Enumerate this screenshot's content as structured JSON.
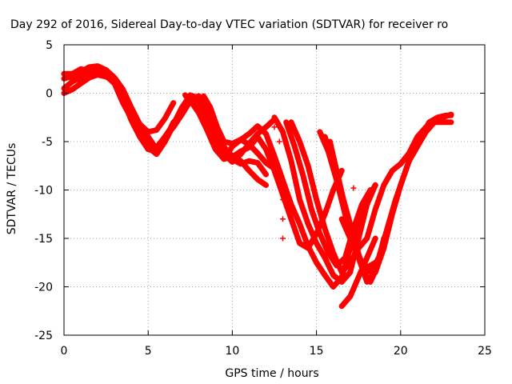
{
  "chart_data": {
    "type": "scatter",
    "title": "Day 292 of 2016, Sidereal Day-to-day VTEC variation (SDTVAR) for receiver ro",
    "xlabel": "GPS time / hours",
    "ylabel": "SDTVAR / TECUs",
    "xlim": [
      0,
      25
    ],
    "ylim": [
      -25,
      5
    ],
    "x_ticks": [
      0,
      5,
      10,
      15,
      20,
      25
    ],
    "y_ticks": [
      5,
      0,
      -5,
      -10,
      -15,
      -20,
      -25
    ],
    "x_tick_labels": [
      "0",
      "5",
      "10",
      "15",
      "20",
      "25"
    ],
    "y_tick_labels": [
      "5",
      "0",
      "-5",
      "-10",
      "-15",
      "-20",
      "-25"
    ],
    "grid": true,
    "marker": "+",
    "color": "#ff0000",
    "series": [
      {
        "points": [
          [
            0,
            2
          ],
          [
            0.5,
            2
          ],
          [
            1,
            2.5
          ],
          [
            1.5,
            2.3
          ],
          [
            2,
            2.6
          ],
          [
            2.5,
            2.2
          ],
          [
            3,
            1.3
          ],
          [
            3.5,
            -0.5
          ],
          [
            4,
            -2
          ],
          [
            4.5,
            -3.2
          ],
          [
            5,
            -4
          ],
          [
            5.5,
            -3.8
          ],
          [
            6,
            -2.6
          ],
          [
            6.5,
            -1
          ]
        ]
      },
      {
        "points": [
          [
            0,
            1.5
          ],
          [
            0.5,
            1.8
          ],
          [
            1,
            2.2
          ],
          [
            1.5,
            2.7
          ],
          [
            2,
            2.8
          ],
          [
            2.5,
            2.4
          ],
          [
            3,
            1.2
          ],
          [
            3.5,
            -0.6
          ],
          [
            4,
            -2.8
          ],
          [
            4.5,
            -4.5
          ],
          [
            5,
            -5.8
          ],
          [
            5.5,
            -6
          ],
          [
            6,
            -4.5
          ],
          [
            6.5,
            -3.2
          ],
          [
            7,
            -1.5
          ],
          [
            7.5,
            -0.5
          ],
          [
            8,
            -1
          ],
          [
            8.5,
            -2.5
          ],
          [
            9,
            -4.8
          ],
          [
            9.5,
            -6.3
          ],
          [
            10,
            -7.1
          ],
          [
            10.5,
            -6.3
          ],
          [
            11,
            -5.2
          ],
          [
            11.5,
            -4.2
          ],
          [
            12,
            -3.5
          ],
          [
            12.5,
            -2.7
          ]
        ]
      },
      {
        "points": [
          [
            0,
            0.5
          ],
          [
            0.5,
            1.2
          ],
          [
            1,
            1.6
          ],
          [
            1.5,
            2
          ],
          [
            2,
            2.1
          ],
          [
            2.5,
            1.8
          ],
          [
            3,
            1
          ],
          [
            3.5,
            -1
          ],
          [
            4,
            -2.6
          ],
          [
            4.5,
            -4
          ],
          [
            5,
            -5.6
          ],
          [
            5.5,
            -6.3
          ],
          [
            6,
            -5
          ],
          [
            6.5,
            -3.3
          ],
          [
            7,
            -1.5
          ],
          [
            7.5,
            -0.2
          ],
          [
            8,
            -0.5
          ],
          [
            8.5,
            -3
          ],
          [
            9,
            -5.2
          ],
          [
            9.5,
            -6.8
          ],
          [
            10,
            -5.5
          ],
          [
            10.5,
            -4.8
          ],
          [
            11,
            -5.3
          ],
          [
            11.5,
            -6.2
          ],
          [
            12,
            -7.2
          ],
          [
            12.5,
            -7.8
          ]
        ]
      },
      {
        "points": [
          [
            0,
            0
          ],
          [
            0.5,
            0.4
          ],
          [
            1,
            1
          ],
          [
            1.5,
            1.6
          ],
          [
            2,
            1.9
          ],
          [
            2.5,
            1.7
          ],
          [
            3,
            1.2
          ],
          [
            3.5,
            -0.2
          ],
          [
            4,
            -1.8
          ],
          [
            4.5,
            -3.5
          ],
          [
            5,
            -5
          ],
          [
            5.5,
            -5.6
          ],
          [
            6,
            -4.5
          ],
          [
            6.5,
            -3.5
          ],
          [
            7,
            -2.2
          ],
          [
            7.5,
            -0.8
          ],
          [
            8,
            -0.5
          ],
          [
            8.5,
            -1.5
          ],
          [
            9,
            -3.5
          ],
          [
            9.5,
            -5.5
          ],
          [
            10,
            -6.8
          ],
          [
            10.5,
            -7.3
          ],
          [
            11,
            -7
          ],
          [
            11.5,
            -7.2
          ],
          [
            12,
            -8.4
          ]
        ]
      },
      {
        "points": [
          [
            0,
            2
          ],
          [
            0.5,
            1.5
          ],
          [
            1,
            1.4
          ],
          [
            1.5,
            1.8
          ],
          [
            2,
            2.2
          ],
          [
            2.5,
            2.4
          ],
          [
            3,
            1.6
          ],
          [
            3.5,
            0.4
          ],
          [
            4,
            -1.5
          ],
          [
            4.5,
            -3.2
          ],
          [
            5,
            -4.5
          ],
          [
            5.5,
            -5.8
          ],
          [
            6,
            -4.8
          ],
          [
            6.5,
            -3
          ],
          [
            7,
            -2.2
          ],
          [
            7.5,
            -0.6
          ],
          [
            8,
            -0.3
          ],
          [
            8.5,
            -1.8
          ],
          [
            9,
            -3.8
          ],
          [
            9.5,
            -5.6
          ],
          [
            10,
            -6.5
          ],
          [
            10.5,
            -7
          ],
          [
            11,
            -8
          ],
          [
            11.5,
            -8.9
          ],
          [
            12,
            -9.5
          ]
        ]
      },
      {
        "points": [
          [
            7.2,
            -0.2
          ],
          [
            7.6,
            -1
          ],
          [
            8,
            -2
          ],
          [
            8.5,
            -3.8
          ],
          [
            9,
            -5.8
          ],
          [
            9.5,
            -6.8
          ],
          [
            10,
            -6.6
          ],
          [
            10.5,
            -6
          ],
          [
            11,
            -5.6
          ],
          [
            11.5,
            -4.5
          ],
          [
            12,
            -5.8
          ],
          [
            12.5,
            -8
          ],
          [
            13,
            -10.5
          ],
          [
            13.5,
            -13
          ],
          [
            14,
            -15.5
          ],
          [
            14.5,
            -16
          ],
          [
            15,
            -14.5
          ],
          [
            15.5,
            -12.5
          ],
          [
            16,
            -10
          ],
          [
            16.5,
            -8
          ]
        ]
      },
      {
        "points": [
          [
            8.3,
            -0.3
          ],
          [
            8.7,
            -1.5
          ],
          [
            9.1,
            -3.5
          ],
          [
            9.5,
            -5
          ],
          [
            10,
            -5.2
          ],
          [
            10.5,
            -4.8
          ],
          [
            11,
            -4.2
          ],
          [
            11.5,
            -3.4
          ],
          [
            12,
            -4.2
          ],
          [
            12.5,
            -6.5
          ],
          [
            13,
            -9
          ],
          [
            13.5,
            -11.5
          ],
          [
            14,
            -13.5
          ],
          [
            14.5,
            -15.8
          ],
          [
            15,
            -17.5
          ],
          [
            15.5,
            -18.8
          ],
          [
            16,
            -20
          ],
          [
            16.5,
            -19
          ],
          [
            17,
            -16
          ],
          [
            17.5,
            -13
          ],
          [
            18,
            -11
          ],
          [
            18.5,
            -9.5
          ]
        ]
      },
      {
        "points": [
          [
            12.5,
            -2.5
          ],
          [
            13,
            -4
          ],
          [
            13.5,
            -7
          ],
          [
            14,
            -11
          ],
          [
            14.5,
            -13.5
          ],
          [
            15,
            -15.5
          ],
          [
            15.5,
            -17
          ],
          [
            16,
            -18.8
          ],
          [
            16.5,
            -19.5
          ],
          [
            17,
            -18.5
          ],
          [
            17.5,
            -15
          ],
          [
            18,
            -11.5
          ],
          [
            18.5,
            -9.5
          ]
        ]
      },
      {
        "points": [
          [
            13.2,
            -3
          ],
          [
            13.7,
            -5.5
          ],
          [
            14.2,
            -8.5
          ],
          [
            14.7,
            -12
          ],
          [
            15.2,
            -14.5
          ],
          [
            15.7,
            -16.5
          ],
          [
            16.2,
            -17.8
          ],
          [
            16.7,
            -17
          ],
          [
            17.2,
            -14
          ],
          [
            17.7,
            -11.5
          ],
          [
            18.2,
            -10
          ]
        ]
      },
      {
        "points": [
          [
            13.5,
            -3
          ],
          [
            14,
            -5
          ],
          [
            14.5,
            -7.5
          ],
          [
            15,
            -11
          ],
          [
            15.5,
            -14
          ],
          [
            16,
            -16.5
          ],
          [
            16.5,
            -18.5
          ],
          [
            17,
            -17.5
          ],
          [
            17.5,
            -16
          ],
          [
            18,
            -15
          ],
          [
            18.5,
            -12
          ],
          [
            19,
            -9.5
          ],
          [
            19.5,
            -8
          ],
          [
            20,
            -7.3
          ],
          [
            20.5,
            -6.2
          ],
          [
            21,
            -4.5
          ],
          [
            21.5,
            -3.5
          ],
          [
            22,
            -3
          ],
          [
            22.5,
            -3
          ],
          [
            23,
            -3
          ]
        ]
      },
      {
        "points": [
          [
            15.2,
            -4
          ],
          [
            15.7,
            -6
          ],
          [
            16.2,
            -9
          ],
          [
            16.7,
            -12.5
          ],
          [
            17.2,
            -15.5
          ],
          [
            17.7,
            -17.5
          ],
          [
            18.2,
            -18.5
          ],
          [
            18.7,
            -17
          ],
          [
            19.2,
            -14
          ],
          [
            19.7,
            -11
          ],
          [
            20.2,
            -8.5
          ],
          [
            20.7,
            -6
          ],
          [
            21.2,
            -4.5
          ],
          [
            21.7,
            -3
          ],
          [
            22.2,
            -2.5
          ],
          [
            22.7,
            -2.3
          ],
          [
            23,
            -2.3
          ]
        ]
      },
      {
        "points": [
          [
            15.5,
            -4.5
          ],
          [
            16,
            -7
          ],
          [
            16.5,
            -10.5
          ],
          [
            17,
            -14
          ],
          [
            17.5,
            -17
          ],
          [
            18,
            -19.5
          ],
          [
            18.5,
            -18.5
          ],
          [
            19,
            -16
          ],
          [
            19.5,
            -12.5
          ],
          [
            20,
            -9.5
          ],
          [
            20.5,
            -7
          ],
          [
            21,
            -5.5
          ],
          [
            21.5,
            -4
          ],
          [
            22,
            -3
          ],
          [
            22.5,
            -2.5
          ],
          [
            23,
            -2.2
          ]
        ]
      },
      {
        "points": [
          [
            15.8,
            -5
          ],
          [
            16.2,
            -8
          ],
          [
            16.6,
            -11
          ],
          [
            17,
            -13.5
          ],
          [
            17.4,
            -16
          ],
          [
            17.8,
            -18.5
          ],
          [
            18.2,
            -19.5
          ],
          [
            18.6,
            -18
          ],
          [
            19,
            -15
          ]
        ]
      },
      {
        "points": [
          [
            16.5,
            -22
          ],
          [
            17,
            -21
          ],
          [
            17.5,
            -19
          ],
          [
            18,
            -17
          ],
          [
            18.5,
            -15
          ]
        ]
      },
      {
        "points": [
          [
            16.5,
            -13
          ],
          [
            17,
            -15
          ],
          [
            17.5,
            -17
          ],
          [
            18,
            -18
          ],
          [
            18.5,
            -17.5
          ]
        ]
      }
    ],
    "outliers": [
      [
        0.3,
        0.3
      ],
      [
        12.5,
        -3.5
      ],
      [
        12.8,
        -5
      ],
      [
        13,
        -11
      ],
      [
        13,
        -13
      ],
      [
        13,
        -15
      ],
      [
        13.5,
        -3
      ],
      [
        17.2,
        -9.8
      ]
    ]
  }
}
